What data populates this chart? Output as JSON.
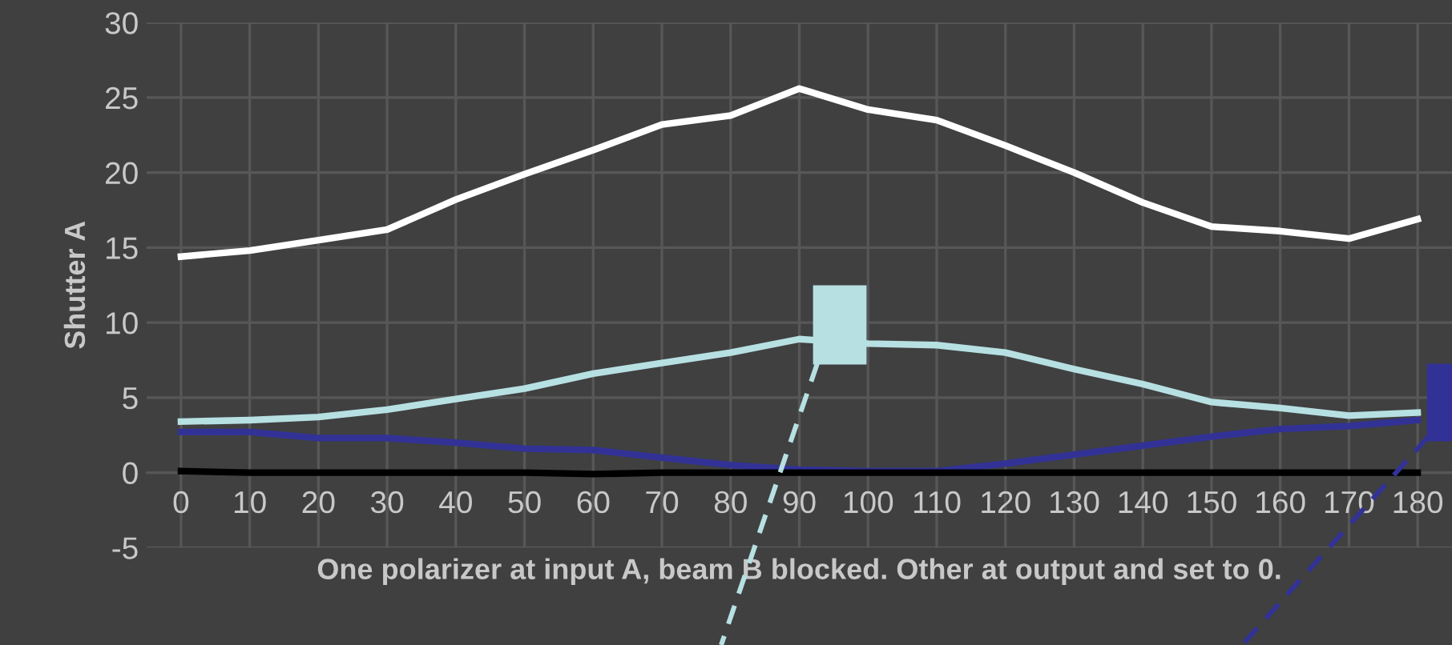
{
  "chart_data": {
    "type": "line",
    "ylabel": "Shutter A",
    "xlabel": "One polarizer at input A, beam B blocked. Other at output and set to 0.",
    "categories": [
      "0",
      "10",
      "20",
      "30",
      "40",
      "50",
      "60",
      "70",
      "80",
      "90",
      "100",
      "110",
      "120",
      "130",
      "140",
      "150",
      "160",
      "170",
      "180"
    ],
    "series": [
      {
        "color": "#ffffff",
        "values": [
          14.4,
          14.8,
          15.5,
          16.2,
          18.2,
          19.9,
          21.5,
          23.2,
          23.8,
          25.6,
          24.2,
          23.5,
          21.8,
          20.0,
          18.0,
          16.4,
          16.1,
          15.6,
          16.9
        ]
      },
      {
        "color": "#b7e0e3",
        "values": [
          3.4,
          3.5,
          3.7,
          4.2,
          4.9,
          5.6,
          6.6,
          7.3,
          8.0,
          8.9,
          8.6,
          8.5,
          8.0,
          6.9,
          5.9,
          4.7,
          4.3,
          3.8,
          4.0
        ]
      },
      {
        "color": "#323296",
        "values": [
          2.7,
          2.7,
          2.3,
          2.3,
          2.0,
          1.6,
          1.5,
          1.0,
          0.5,
          0.2,
          0.1,
          0.1,
          0.6,
          1.2,
          1.8,
          2.4,
          2.9,
          3.1,
          3.5
        ]
      },
      {
        "color": "#000000",
        "values": [
          0.1,
          0,
          0,
          0,
          0,
          0,
          -0.1,
          0,
          0,
          0,
          0,
          0,
          0,
          0,
          0,
          0,
          0,
          0,
          0
        ]
      }
    ],
    "ylim": [
      -5,
      30
    ],
    "yticks": [
      -5,
      0,
      5,
      10,
      15,
      20,
      25,
      30
    ],
    "grid": true,
    "legend": false,
    "marker": "none",
    "line_style": "solid"
  }
}
